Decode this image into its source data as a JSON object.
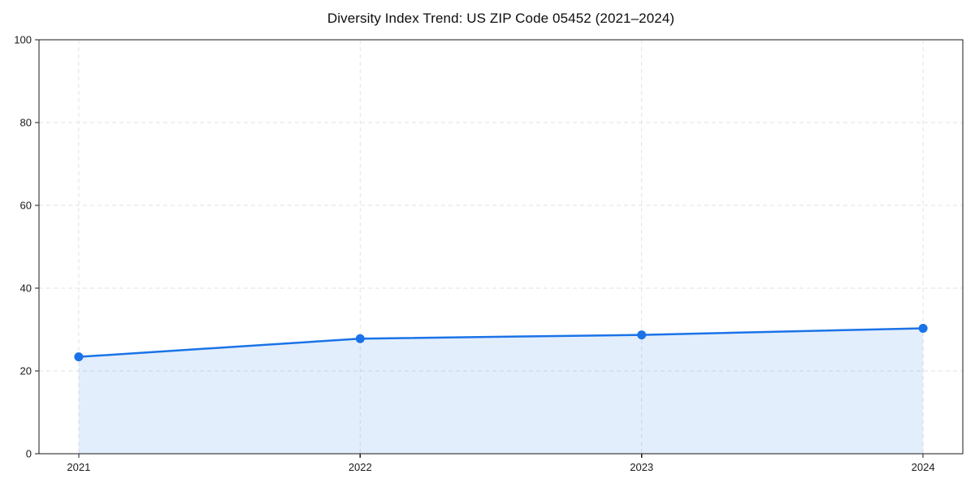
{
  "chart_data": {
    "type": "line",
    "title": "Diversity Index Trend: US ZIP Code 05452 (2021–2024)",
    "categories": [
      "2021",
      "2022",
      "2023",
      "2024"
    ],
    "series": [
      {
        "name": "Diversity Index",
        "values": [
          23.4,
          27.8,
          28.7,
          30.3
        ]
      }
    ],
    "xlabel": "",
    "ylabel": "",
    "ylim": [
      0,
      100
    ],
    "y_ticks": [
      0,
      20,
      40,
      60,
      80,
      100
    ],
    "grid": "dashed",
    "legend": "none",
    "marker": "circle",
    "area_fill": true,
    "colors": {
      "line": "#1a73e8",
      "marker": "#1a73e8",
      "area_fill_rgba": "rgba(26,115,232,0.12)",
      "gridline": "#e2e2e2",
      "axis": "#1a1a1a",
      "tick_label": "#1a1a1a",
      "background": "#ffffff"
    }
  }
}
